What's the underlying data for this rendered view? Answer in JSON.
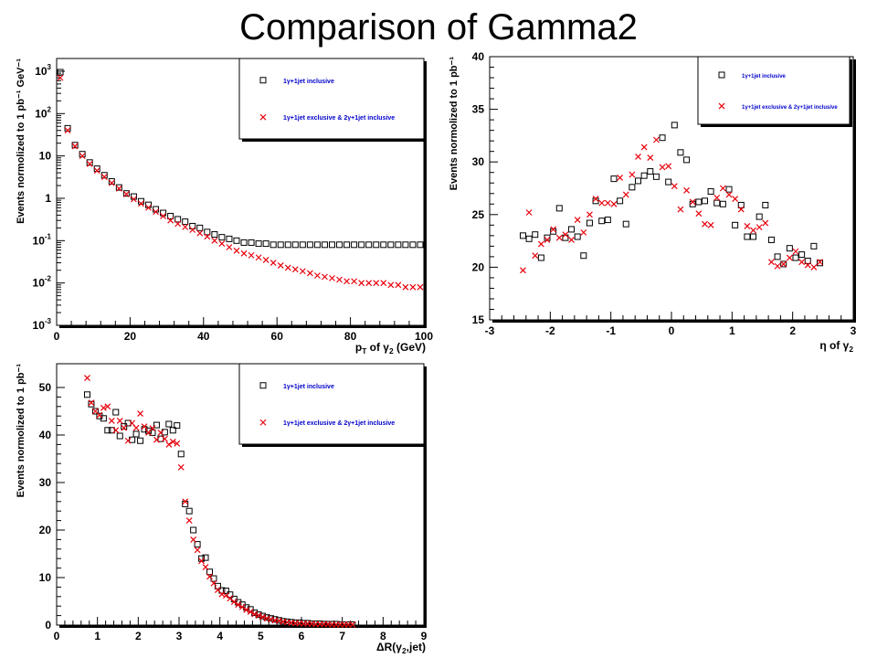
{
  "slide_title": "Comparison of Gamma2",
  "colors": {
    "marker_black": "#000000",
    "marker_red": "#e8000b",
    "legend_text": "#0000cc"
  },
  "chart_data": [
    {
      "type": "scatter",
      "id": "pt",
      "ylabel": "Events normolized to 1 pb⁻¹ GeV⁻¹",
      "xlabel": "p_T of γ_2 (GeV)",
      "xlim": [
        0,
        100
      ],
      "ylim": [
        0.001,
        2000
      ],
      "yscale": "log",
      "xticks": [
        0,
        20,
        40,
        60,
        80,
        100
      ],
      "yticks": [
        {
          "value": 0.001,
          "base": "10",
          "exp": "-3"
        },
        {
          "value": 0.01,
          "base": "10",
          "exp": "-2"
        },
        {
          "value": 0.1,
          "base": "10",
          "exp": "-1"
        },
        {
          "value": 1,
          "base": "1",
          "exp": ""
        },
        {
          "value": 10,
          "base": "10",
          "exp": ""
        },
        {
          "value": 100,
          "base": "10",
          "exp": "2"
        },
        {
          "value": 1000,
          "base": "10",
          "exp": "3"
        }
      ],
      "legend_position": "top-right",
      "series": [
        {
          "name": "1γ+1jet inclusive",
          "marker": "square",
          "x": [
            1,
            3,
            5,
            7,
            9,
            11,
            13,
            15,
            17,
            19,
            21,
            23,
            25,
            27,
            29,
            31,
            33,
            35,
            37,
            39,
            41,
            43,
            45,
            47,
            49,
            51,
            53,
            55,
            57,
            59,
            61,
            63,
            65,
            67,
            69,
            71,
            73,
            75,
            77,
            79,
            81,
            83,
            85,
            87,
            89,
            91,
            93,
            95,
            97,
            99
          ],
          "y": [
            950,
            45,
            18,
            11,
            7,
            5,
            3.5,
            2.5,
            1.8,
            1.3,
            1.1,
            0.85,
            0.7,
            0.55,
            0.45,
            0.38,
            0.32,
            0.28,
            0.22,
            0.2,
            0.16,
            0.14,
            0.12,
            0.11,
            0.1,
            0.09,
            0.09,
            0.085,
            0.085,
            0.08,
            0.08,
            0.08,
            0.08,
            0.08,
            0.08,
            0.08,
            0.08,
            0.08,
            0.08,
            0.08,
            0.08,
            0.08,
            0.08,
            0.08,
            0.08,
            0.08,
            0.08,
            0.08,
            0.08,
            0.08
          ]
        },
        {
          "name": "1γ+1jet exclusive & 2γ+1jet inclusive",
          "marker": "cross",
          "x": [
            1,
            3,
            5,
            7,
            9,
            11,
            13,
            15,
            17,
            19,
            21,
            23,
            25,
            27,
            29,
            31,
            33,
            35,
            37,
            39,
            41,
            43,
            45,
            47,
            49,
            51,
            53,
            55,
            57,
            59,
            61,
            63,
            65,
            67,
            69,
            71,
            73,
            75,
            77,
            79,
            81,
            83,
            85,
            87,
            89,
            91,
            93,
            95,
            97,
            99
          ],
          "y": [
            700,
            40,
            17,
            10,
            6.5,
            4.5,
            3.2,
            2.3,
            1.7,
            1.25,
            0.95,
            0.75,
            0.6,
            0.48,
            0.38,
            0.3,
            0.25,
            0.21,
            0.18,
            0.15,
            0.125,
            0.1,
            0.085,
            0.07,
            0.058,
            0.05,
            0.045,
            0.04,
            0.035,
            0.03,
            0.026,
            0.023,
            0.021,
            0.019,
            0.017,
            0.015,
            0.014,
            0.013,
            0.012,
            0.011,
            0.011,
            0.01,
            0.01,
            0.01,
            0.01,
            0.009,
            0.009,
            0.008,
            0.008,
            0.008
          ]
        }
      ]
    },
    {
      "type": "scatter",
      "id": "eta",
      "ylabel": "Events normolized to 1 pb⁻¹",
      "xlabel": "η of γ_2",
      "xlim": [
        -3,
        3
      ],
      "ylim": [
        15,
        40
      ],
      "xticks": [
        -3,
        -2,
        -1,
        0,
        1,
        2,
        3
      ],
      "yticks": [
        15,
        20,
        25,
        30,
        35,
        40
      ],
      "legend_position": "top-right",
      "series": [
        {
          "name": "1γ+1jet inclusive",
          "marker": "square",
          "x": [
            -2.45,
            -2.35,
            -2.25,
            -2.15,
            -2.05,
            -1.95,
            -1.85,
            -1.75,
            -1.65,
            -1.55,
            -1.45,
            -1.35,
            -1.25,
            -1.15,
            -1.05,
            -0.95,
            -0.85,
            -0.75,
            -0.65,
            -0.55,
            -0.45,
            -0.35,
            -0.25,
            -0.15,
            -0.05,
            0.05,
            0.15,
            0.25,
            0.35,
            0.45,
            0.55,
            0.65,
            0.75,
            0.85,
            0.95,
            1.05,
            1.15,
            1.25,
            1.35,
            1.45,
            1.55,
            1.65,
            1.75,
            1.85,
            1.95,
            2.05,
            2.15,
            2.25,
            2.35,
            2.45
          ],
          "y": [
            23.0,
            22.7,
            23.1,
            20.9,
            22.8,
            23.4,
            25.6,
            22.8,
            23.6,
            22.9,
            21.1,
            24.2,
            26.3,
            24.4,
            24.5,
            28.4,
            26.3,
            24.1,
            27.6,
            28.2,
            28.7,
            29.1,
            28.6,
            32.3,
            28.1,
            33.5,
            30.9,
            30.2,
            26.0,
            26.2,
            26.3,
            27.2,
            26.1,
            26.0,
            27.4,
            24.0,
            25.9,
            22.9,
            22.9,
            24.8,
            25.9,
            22.6,
            21.0,
            20.3,
            21.8,
            20.9,
            21.2,
            20.6,
            22.0,
            20.4
          ]
        },
        {
          "name": "1γ+1jet exclusive & 2γ+1jet inclusive",
          "marker": "cross",
          "x": [
            -2.45,
            -2.35,
            -2.25,
            -2.15,
            -2.05,
            -1.95,
            -1.85,
            -1.75,
            -1.65,
            -1.55,
            -1.45,
            -1.35,
            -1.25,
            -1.15,
            -1.05,
            -0.95,
            -0.85,
            -0.75,
            -0.65,
            -0.55,
            -0.45,
            -0.35,
            -0.25,
            -0.15,
            -0.05,
            0.05,
            0.15,
            0.25,
            0.35,
            0.45,
            0.55,
            0.65,
            0.75,
            0.85,
            0.95,
            1.05,
            1.15,
            1.25,
            1.35,
            1.45,
            1.55,
            1.65,
            1.75,
            1.85,
            1.95,
            2.05,
            2.15,
            2.25,
            2.35,
            2.45
          ],
          "y": [
            19.7,
            25.2,
            21.1,
            22.2,
            22.6,
            23.6,
            22.8,
            23.1,
            22.6,
            24.5,
            23.3,
            25.0,
            26.5,
            26.1,
            26.1,
            26.0,
            28.5,
            26.9,
            28.8,
            30.5,
            31.4,
            30.4,
            32.1,
            29.5,
            29.6,
            27.7,
            25.5,
            27.3,
            26.2,
            25.1,
            24.1,
            24.0,
            26.6,
            27.5,
            26.9,
            26.5,
            25.5,
            23.9,
            23.5,
            23.8,
            24.2,
            20.5,
            20.1,
            20.3,
            20.9,
            21.5,
            20.5,
            20.2,
            20.0,
            20.5
          ]
        }
      ]
    },
    {
      "type": "scatter",
      "id": "dr",
      "ylabel": "Events normolized to 1 pb⁻¹",
      "xlabel": "ΔR(γ_2,jet)",
      "xlim": [
        0,
        9
      ],
      "ylim": [
        0,
        55
      ],
      "xticks": [
        0,
        1,
        2,
        3,
        4,
        5,
        6,
        7,
        8,
        9
      ],
      "yticks": [
        0,
        10,
        20,
        30,
        40,
        50
      ],
      "legend_position": "top-right",
      "series": [
        {
          "name": "1γ+1jet inclusive",
          "marker": "square",
          "x": [
            0.75,
            0.85,
            0.95,
            1.05,
            1.15,
            1.25,
            1.35,
            1.45,
            1.55,
            1.65,
            1.75,
            1.85,
            1.95,
            2.05,
            2.15,
            2.25,
            2.35,
            2.45,
            2.55,
            2.65,
            2.75,
            2.85,
            2.95,
            3.05,
            3.15,
            3.25,
            3.35,
            3.45,
            3.55,
            3.65,
            3.75,
            3.85,
            3.95,
            4.05,
            4.15,
            4.25,
            4.35,
            4.45,
            4.55,
            4.65,
            4.75,
            4.85,
            4.95,
            5.05,
            5.15,
            5.25,
            5.35,
            5.45,
            5.55,
            5.65,
            5.75,
            5.85,
            5.95,
            6.05,
            6.15,
            6.25,
            6.35,
            6.45,
            6.55,
            6.65,
            6.75,
            6.85,
            6.95,
            7.05,
            7.15,
            7.25
          ],
          "y": [
            48.5,
            46.5,
            45.0,
            44.0,
            43.5,
            41.0,
            41.0,
            44.8,
            39.8,
            41.8,
            42.5,
            39.0,
            40.2,
            38.8,
            41.2,
            40.9,
            40.5,
            42.1,
            39.2,
            40.6,
            42.3,
            41.0,
            42.0,
            36.0,
            25.5,
            24.0,
            20.0,
            17.0,
            14.0,
            14.2,
            11.2,
            9.8,
            8.2,
            7.3,
            7.2,
            6.4,
            5.5,
            4.8,
            4.3,
            3.7,
            3.3,
            2.6,
            2.2,
            1.9,
            1.6,
            1.4,
            1.2,
            1.0,
            0.8,
            0.7,
            0.6,
            0.5,
            0.5,
            0.4,
            0.4,
            0.3,
            0.3,
            0.3,
            0.2,
            0.2,
            0.2,
            0.2,
            0.1,
            0.1,
            0.1,
            0.1
          ]
        },
        {
          "name": "1γ+1jet exclusive & 2γ+1jet inclusive",
          "marker": "cross",
          "x": [
            0.75,
            0.85,
            0.95,
            1.05,
            1.15,
            1.25,
            1.35,
            1.45,
            1.55,
            1.65,
            1.75,
            1.85,
            1.95,
            2.05,
            2.15,
            2.25,
            2.35,
            2.45,
            2.55,
            2.65,
            2.75,
            2.85,
            2.95,
            3.05,
            3.15,
            3.25,
            3.35,
            3.45,
            3.55,
            3.65,
            3.75,
            3.85,
            3.95,
            4.05,
            4.15,
            4.25,
            4.35,
            4.45,
            4.55,
            4.65,
            4.75,
            4.85,
            4.95,
            5.05,
            5.15,
            5.25,
            5.35,
            5.45,
            5.55,
            5.65,
            5.75,
            5.85,
            5.95,
            6.05,
            6.15,
            6.25,
            6.35,
            6.45,
            6.55,
            6.65,
            6.75,
            6.85,
            6.95,
            7.05,
            7.15,
            7.25
          ],
          "y": [
            52.0,
            46.8,
            45.0,
            44.2,
            45.7,
            46.0,
            43.0,
            41.0,
            43.0,
            41.5,
            38.8,
            42.5,
            41.5,
            44.5,
            41.8,
            40.5,
            41.4,
            39.0,
            40.5,
            39.2,
            38.0,
            38.6,
            38.2,
            33.2,
            26.0,
            22.0,
            18.0,
            15.8,
            13.5,
            12.2,
            10.2,
            8.8,
            7.4,
            6.5,
            6.2,
            5.6,
            4.9,
            4.3,
            3.8,
            3.2,
            2.8,
            2.3,
            2.0,
            1.7,
            1.4,
            1.2,
            1.0,
            0.9,
            0.7,
            0.6,
            0.5,
            0.4,
            0.4,
            0.3,
            0.3,
            0.3,
            0.2,
            0.2,
            0.2,
            0.2,
            0.1,
            0.1,
            0.1,
            0.1,
            0.1,
            0.1
          ]
        }
      ]
    }
  ]
}
